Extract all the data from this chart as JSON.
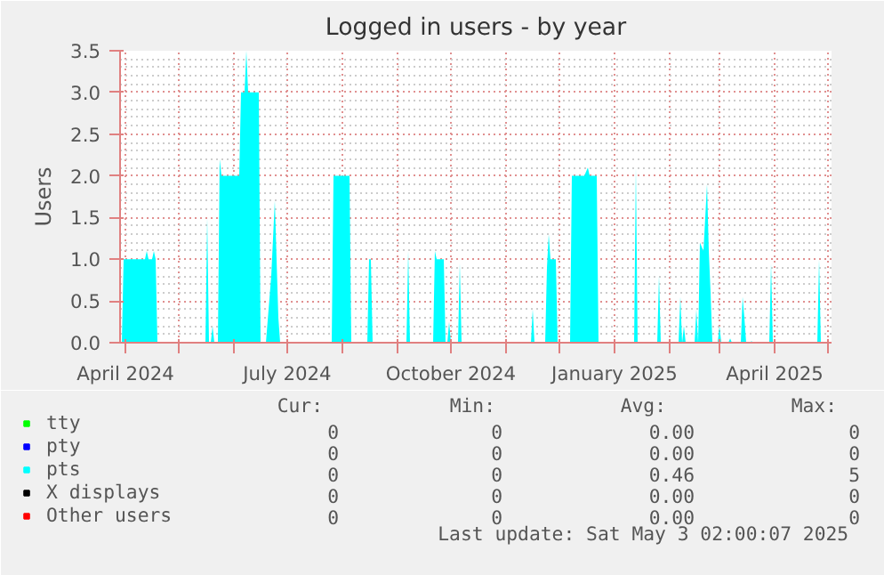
{
  "chart_data": {
    "type": "area",
    "title": "Logged in users - by year",
    "ylabel": "Users",
    "xlim": [
      "2024-03-29",
      "2025-05-03"
    ],
    "xticks": [
      {
        "value": "2024-04-01",
        "label": "April 2024"
      },
      {
        "value": "2024-05-01",
        "label": null
      },
      {
        "value": "2024-06-01",
        "label": null
      },
      {
        "value": "2024-07-01",
        "label": "July 2024"
      },
      {
        "value": "2024-08-01",
        "label": null
      },
      {
        "value": "2024-09-01",
        "label": null
      },
      {
        "value": "2024-10-01",
        "label": "October 2024"
      },
      {
        "value": "2024-11-01",
        "label": null
      },
      {
        "value": "2024-12-01",
        "label": null
      },
      {
        "value": "2025-01-01",
        "label": "January 2025"
      },
      {
        "value": "2025-02-01",
        "label": null
      },
      {
        "value": "2025-03-01",
        "label": null
      },
      {
        "value": "2025-04-01",
        "label": "April 2025"
      },
      {
        "value": "2025-05-01",
        "label": null
      }
    ],
    "ylim": [
      0,
      3.5
    ],
    "yticks": [
      {
        "value": 0,
        "label": "0.0"
      },
      {
        "value": 0.5,
        "label": "0.5"
      },
      {
        "value": 1,
        "label": "1.0"
      },
      {
        "value": 1.5,
        "label": "1.5"
      },
      {
        "value": 2,
        "label": "2.0"
      },
      {
        "value": 2.5,
        "label": "2.5"
      },
      {
        "value": 3,
        "label": "3.0"
      },
      {
        "value": 3.5,
        "label": "3.5"
      }
    ],
    "grid": true,
    "legend": "bottom left",
    "series": [
      {
        "name": "tty",
        "color": "#00ff00"
      },
      {
        "name": "pty",
        "color": "#0000ff"
      },
      {
        "name": "pts",
        "color": "#00ffff",
        "x": [
          "2024-03-30",
          "2024-03-31",
          "2024-04-12",
          "2024-04-13",
          "2024-04-14",
          "2024-04-16",
          "2024-04-17",
          "2024-04-18",
          "2024-04-19",
          "2024-05-16",
          "2024-05-17",
          "2024-05-18",
          "2024-05-19",
          "2024-05-20",
          "2024-05-21",
          "2024-05-23",
          "2024-05-24",
          "2024-05-25",
          "2024-06-04",
          "2024-06-05",
          "2024-06-07",
          "2024-06-08",
          "2024-06-09",
          "2024-06-15",
          "2024-06-16",
          "2024-06-19",
          "2024-06-22",
          "2024-06-24",
          "2024-06-26",
          "2024-06-27",
          "2024-07-26",
          "2024-07-27",
          "2024-08-05",
          "2024-08-06",
          "2024-08-15",
          "2024-08-16",
          "2024-08-17",
          "2024-08-18",
          "2024-09-06",
          "2024-09-07",
          "2024-09-08",
          "2024-09-21",
          "2024-09-22",
          "2024-09-23",
          "2024-09-27",
          "2024-09-28",
          "2024-09-29",
          "2024-09-30",
          "2024-10-01",
          "2024-10-05",
          "2024-10-06",
          "2024-10-07",
          "2024-11-15",
          "2024-11-16",
          "2024-11-17",
          "2024-11-23",
          "2024-11-24",
          "2024-11-25",
          "2024-11-26",
          "2024-11-29",
          "2024-11-30",
          "2024-12-07",
          "2024-12-08",
          "2024-12-15",
          "2024-12-17",
          "2024-12-18",
          "2024-12-22",
          "2024-12-23",
          "2025-01-12",
          "2025-01-13",
          "2025-01-14",
          "2025-01-25",
          "2025-01-26",
          "2025-01-27",
          "2025-02-06",
          "2025-02-07",
          "2025-02-08",
          "2025-02-09",
          "2025-02-10",
          "2025-02-15",
          "2025-02-16",
          "2025-02-17",
          "2025-02-18",
          "2025-02-20",
          "2025-02-22",
          "2025-02-23",
          "2025-02-24",
          "2025-02-25",
          "2025-02-28",
          "2025-03-01",
          "2025-03-02",
          "2025-03-06",
          "2025-03-07",
          "2025-03-08",
          "2025-03-13",
          "2025-03-14",
          "2025-03-15",
          "2025-03-16",
          "2025-03-18",
          "2025-03-19",
          "2025-03-20",
          "2025-03-29",
          "2025-03-30",
          "2025-03-31",
          "2025-04-25",
          "2025-04-26",
          "2025-04-27",
          "2025-05-02"
        ],
        "values": [
          0,
          1.0,
          1.0,
          1.1,
          1.0,
          1.0,
          1.1,
          1.0,
          0,
          0,
          1.5,
          0,
          0,
          0.2,
          0,
          0,
          2.2,
          2.0,
          2.0,
          3.0,
          3.0,
          3.5,
          3.0,
          3.0,
          0,
          0,
          0.8,
          1.7,
          0.3,
          0,
          0,
          2.0,
          2.0,
          0,
          0,
          1.0,
          1.0,
          0,
          0,
          1.1,
          0,
          0,
          1.1,
          1.0,
          1.0,
          0,
          0,
          0.25,
          0,
          0,
          0.95,
          0,
          0,
          0.4,
          0,
          0,
          0.9,
          1.3,
          1.0,
          1.0,
          0,
          0,
          2.0,
          2.0,
          2.1,
          2.0,
          2.0,
          0,
          0,
          2.1,
          0,
          0,
          0.8,
          0,
          0,
          0.55,
          0,
          0.2,
          0,
          0,
          0.4,
          0,
          1.2,
          1.1,
          1.9,
          1.1,
          0.6,
          0,
          0,
          0.2,
          0,
          0,
          0.05,
          0,
          0,
          0.55,
          0.3,
          0,
          0,
          0.02,
          0,
          0,
          0.95,
          0,
          0,
          1.0,
          0,
          0
        ]
      },
      {
        "name": "X displays",
        "color": "#000000"
      },
      {
        "name": "Other users",
        "color": "#ff0000"
      }
    ],
    "annotations": [
      "Cur:",
      "Min:",
      "Avg:",
      "Max:",
      "0",
      "0",
      "0.00",
      "0",
      "0",
      "0",
      "0.00",
      "0",
      "0",
      "0",
      "0.46",
      "5",
      "0",
      "0",
      "0.00",
      "0",
      "0",
      "0",
      "0.00",
      "0",
      "Last update: Sat May  3 02:00:07 2025"
    ]
  }
}
